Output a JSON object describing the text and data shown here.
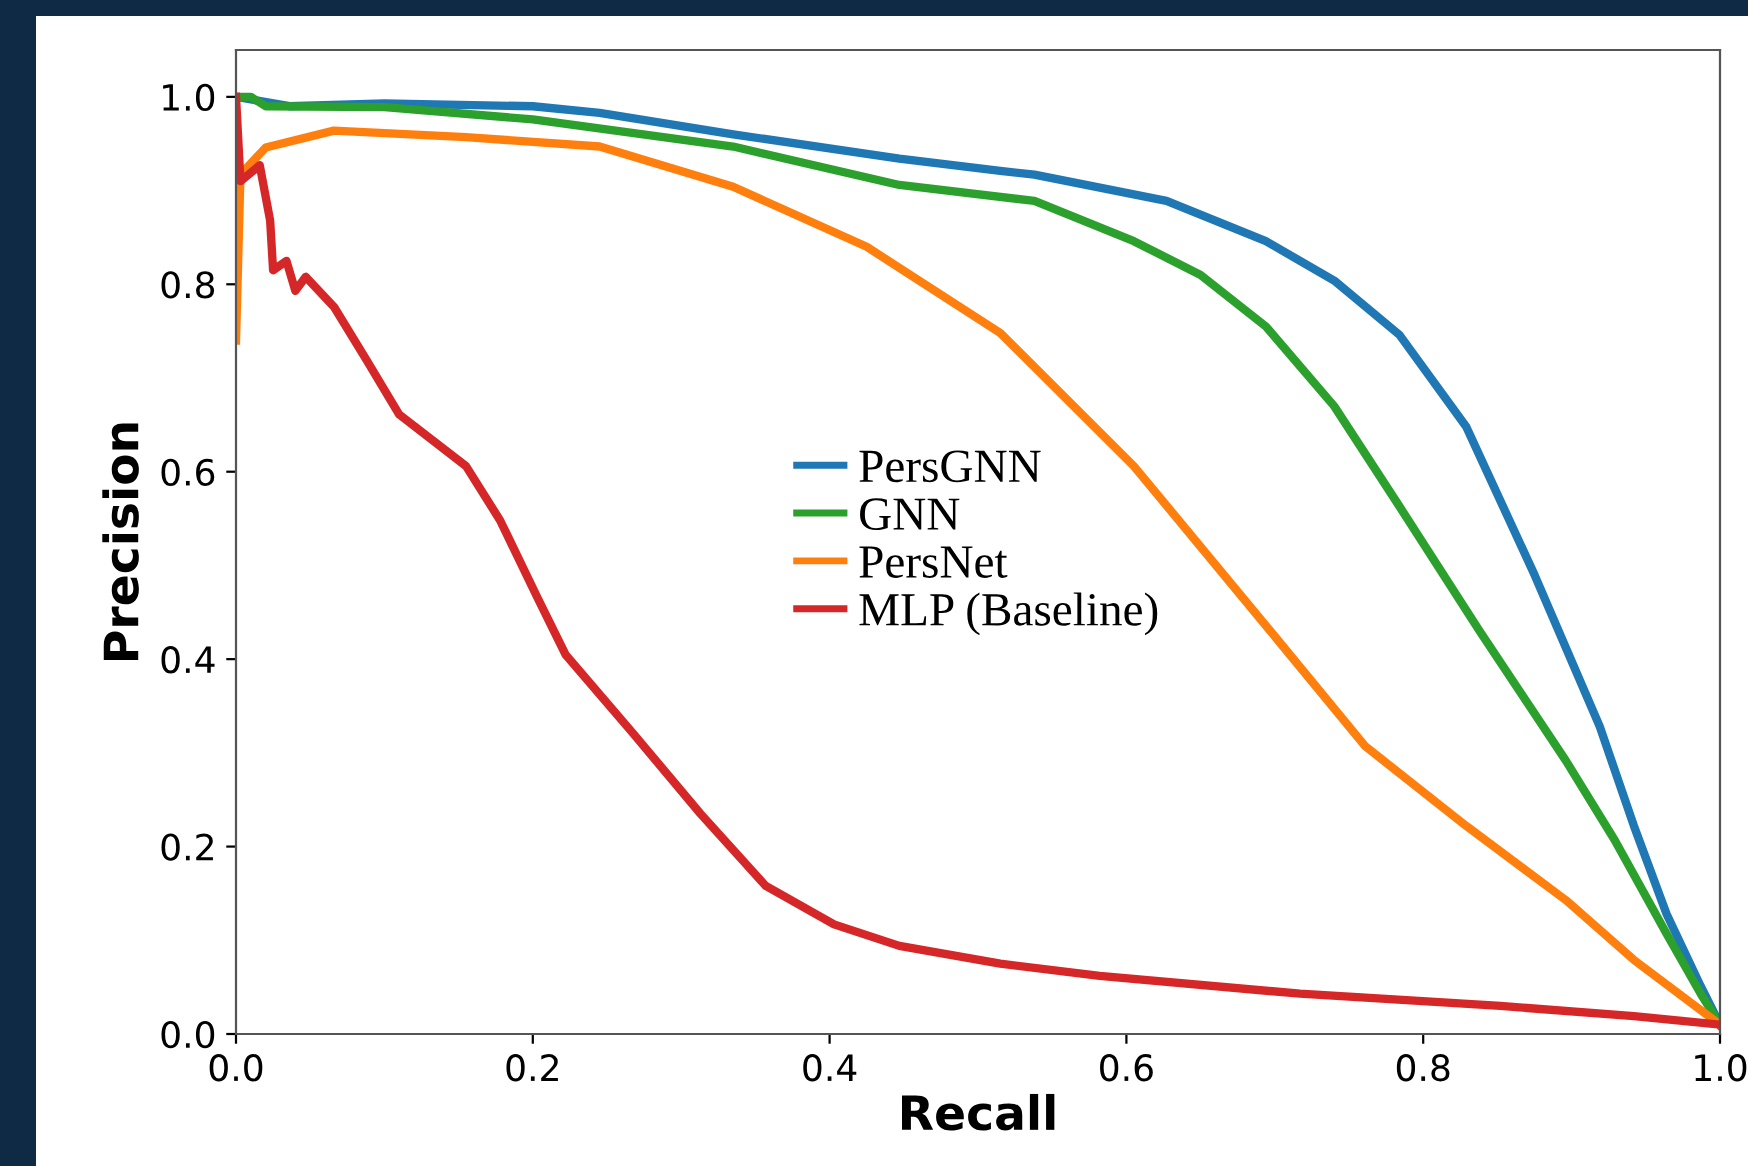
{
  "chart_data": {
    "type": "line",
    "xlabel": "Recall",
    "ylabel": "Precision",
    "xlim": [
      0,
      1
    ],
    "ylim": [
      0,
      1.05
    ],
    "xticks": [
      {
        "value": 0,
        "label": "0.0"
      },
      0.2,
      0.4,
      0.6,
      0.8,
      {
        "value": 1,
        "label": "1.0"
      }
    ],
    "yticks": [
      {
        "value": 0,
        "label": "0.0"
      },
      0.2,
      0.4,
      0.6,
      0.8,
      {
        "value": 1,
        "label": "1.0"
      }
    ],
    "grid": false,
    "legend": "center",
    "marker": "none",
    "line_style": "solid",
    "series": [
      {
        "name": "PersGNN",
        "color": "#1f77b4",
        "x": [
          0,
          0.036,
          0.1,
          0.2,
          0.245,
          0.335,
          0.447,
          0.515,
          0.538,
          0.627,
          0.694,
          0.74,
          0.784,
          0.829,
          0.875,
          0.919,
          0.942,
          0.964,
          0.987,
          1.0
        ],
        "values": [
          1.0,
          0.99,
          0.993,
          0.99,
          0.983,
          0.96,
          0.934,
          0.921,
          0.917,
          0.889,
          0.846,
          0.804,
          0.746,
          0.648,
          0.49,
          0.328,
          0.222,
          0.128,
          0.051,
          0.01
        ]
      },
      {
        "name": "GNN",
        "color": "#2ca02c",
        "x": [
          0,
          0.01,
          0.02,
          0.1,
          0.2,
          0.335,
          0.447,
          0.538,
          0.605,
          0.65,
          0.694,
          0.74,
          0.784,
          0.838,
          0.896,
          0.929,
          0.964,
          0.987,
          1.0
        ],
        "values": [
          1.0,
          1.0,
          0.99,
          0.989,
          0.976,
          0.947,
          0.906,
          0.889,
          0.846,
          0.81,
          0.755,
          0.67,
          0.563,
          0.43,
          0.292,
          0.207,
          0.107,
          0.043,
          0.01
        ]
      },
      {
        "name": "PersNet",
        "color": "#ff7f0e",
        "x": [
          0,
          0.003,
          0.02,
          0.066,
          0.155,
          0.245,
          0.335,
          0.425,
          0.515,
          0.605,
          0.697,
          0.761,
          0.829,
          0.896,
          0.942,
          1.0
        ],
        "values": [
          0.74,
          0.917,
          0.946,
          0.964,
          0.957,
          0.947,
          0.904,
          0.84,
          0.748,
          0.606,
          0.43,
          0.307,
          0.222,
          0.143,
          0.079,
          0.01
        ]
      },
      {
        "name": "MLP (Baseline)",
        "color": "#d62728",
        "x": [
          0,
          0.003,
          0.016,
          0.023,
          0.025,
          0.034,
          0.04,
          0.047,
          0.066,
          0.088,
          0.11,
          0.155,
          0.178,
          0.203,
          0.222,
          0.268,
          0.313,
          0.357,
          0.403,
          0.447,
          0.515,
          0.582,
          0.717,
          0.852,
          0.942,
          1.0
        ],
        "values": [
          1.0,
          0.91,
          0.927,
          0.868,
          0.815,
          0.825,
          0.793,
          0.808,
          0.776,
          0.719,
          0.661,
          0.606,
          0.548,
          0.466,
          0.405,
          0.32,
          0.235,
          0.158,
          0.117,
          0.094,
          0.075,
          0.062,
          0.043,
          0.03,
          0.019,
          0.01
        ]
      }
    ]
  }
}
